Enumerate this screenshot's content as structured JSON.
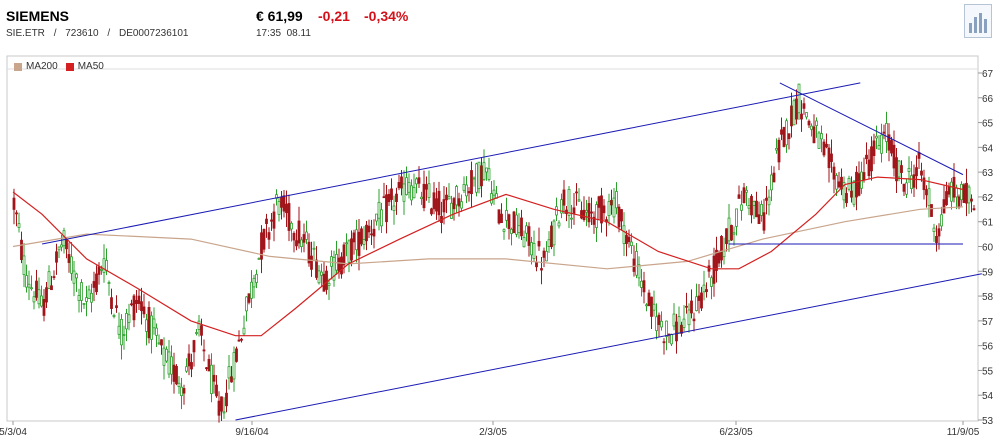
{
  "header": {
    "name": "SIEMENS",
    "price": "€ 61,99",
    "change": "-0,21",
    "change_pct": "-0,34%",
    "symbol": "SIE.ETR",
    "sep": "/",
    "wkn": "723610",
    "isin": "DE0007236101",
    "time": "17:35",
    "date": "08.11"
  },
  "colors": {
    "up": "#2ca02c",
    "down": "#a0151a",
    "ma200": "#c9a58c",
    "ma50": "#d42020",
    "trend": "#1a1ab4"
  },
  "chart_data": {
    "type": "candlestick",
    "legend": [
      "MA200",
      "MA50"
    ],
    "ylim": [
      53,
      67
    ],
    "yticks": [
      53,
      54,
      55,
      56,
      57,
      58,
      59,
      60,
      61,
      62,
      63,
      64,
      65,
      66,
      67
    ],
    "xticks": [
      "5/3/04",
      "9/16/04",
      "2/3/05",
      "6/23/05",
      "11/9/05"
    ],
    "x_range": [
      "2004-05-03",
      "2005-11-09"
    ],
    "series": [
      {
        "name": "MA200",
        "points": [
          [
            "2004-05-03",
            60.0
          ],
          [
            "2004-06-15",
            60.5
          ],
          [
            "2004-08-15",
            60.3
          ],
          [
            "2004-09-30",
            59.6
          ],
          [
            "2004-11-15",
            59.3
          ],
          [
            "2005-01-01",
            59.5
          ],
          [
            "2005-02-15",
            59.5
          ],
          [
            "2005-04-15",
            59.1
          ],
          [
            "2005-06-01",
            59.4
          ],
          [
            "2005-07-15",
            60.3
          ],
          [
            "2005-09-01",
            61.0
          ],
          [
            "2005-10-15",
            61.5
          ],
          [
            "2005-11-09",
            61.6
          ]
        ]
      },
      {
        "name": "MA50",
        "points": [
          [
            "2004-05-03",
            62.2
          ],
          [
            "2004-05-20",
            61.3
          ],
          [
            "2004-06-15",
            59.5
          ],
          [
            "2004-07-15",
            58.3
          ],
          [
            "2004-08-15",
            57.0
          ],
          [
            "2004-09-10",
            56.4
          ],
          [
            "2004-09-25",
            56.4
          ],
          [
            "2004-10-15",
            57.5
          ],
          [
            "2004-11-15",
            59.3
          ],
          [
            "2004-12-15",
            60.3
          ],
          [
            "2005-01-15",
            61.3
          ],
          [
            "2005-02-15",
            62.1
          ],
          [
            "2005-03-15",
            61.5
          ],
          [
            "2005-04-15",
            61.0
          ],
          [
            "2005-05-15",
            59.8
          ],
          [
            "2005-06-15",
            59.1
          ],
          [
            "2005-07-01",
            59.1
          ],
          [
            "2005-07-20",
            59.8
          ],
          [
            "2005-08-15",
            61.3
          ],
          [
            "2005-09-01",
            62.5
          ],
          [
            "2005-09-20",
            62.8
          ],
          [
            "2005-10-15",
            62.7
          ],
          [
            "2005-11-09",
            62.3
          ]
        ]
      }
    ],
    "trendlines": [
      {
        "from": [
          "2004-05-20",
          60.1
        ],
        "to": [
          "2005-09-10",
          66.6
        ]
      },
      {
        "from": [
          "2004-09-10",
          53.0
        ],
        "to": [
          "2005-11-20",
          58.9
        ]
      },
      {
        "from": [
          "2005-07-25",
          66.6
        ],
        "to": [
          "2005-11-09",
          62.9
        ]
      },
      {
        "from": [
          "2005-06-25",
          60.1
        ],
        "to": [
          "2005-11-09",
          60.1
        ]
      }
    ],
    "price_path": [
      [
        "2004-05-03",
        62.0
      ],
      [
        "2004-05-10",
        59.0
      ],
      [
        "2004-05-20",
        57.5
      ],
      [
        "2004-06-01",
        60.2
      ],
      [
        "2004-06-15",
        57.5
      ],
      [
        "2004-06-25",
        59.5
      ],
      [
        "2004-07-05",
        56.5
      ],
      [
        "2004-07-15",
        58.0
      ],
      [
        "2004-07-30",
        55.5
      ],
      [
        "2004-08-10",
        54.5
      ],
      [
        "2004-08-20",
        56.5
      ],
      [
        "2004-09-01",
        53.2
      ],
      [
        "2004-09-10",
        55.5
      ],
      [
        "2004-09-25",
        60.0
      ],
      [
        "2004-10-05",
        61.8
      ],
      [
        "2004-10-20",
        60.2
      ],
      [
        "2004-11-01",
        58.8
      ],
      [
        "2004-11-15",
        59.8
      ],
      [
        "2004-12-01",
        61.0
      ],
      [
        "2004-12-20",
        62.5
      ],
      [
        "2005-01-10",
        61.5
      ],
      [
        "2005-01-25",
        62.5
      ],
      [
        "2005-02-03",
        63.2
      ],
      [
        "2005-02-10",
        61.5
      ],
      [
        "2005-02-25",
        60.5
      ],
      [
        "2005-03-10",
        59.3
      ],
      [
        "2005-03-20",
        62.0
      ],
      [
        "2005-04-05",
        61.2
      ],
      [
        "2005-04-20",
        61.8
      ],
      [
        "2005-05-01",
        59.5
      ],
      [
        "2005-05-10",
        57.5
      ],
      [
        "2005-05-20",
        56.5
      ],
      [
        "2005-06-01",
        57.0
      ],
      [
        "2005-06-15",
        58.8
      ],
      [
        "2005-06-25",
        60.5
      ],
      [
        "2005-07-05",
        62.2
      ],
      [
        "2005-07-15",
        61.0
      ],
      [
        "2005-07-25",
        64.0
      ],
      [
        "2005-08-05",
        66.0
      ],
      [
        "2005-08-15",
        64.5
      ],
      [
        "2005-08-25",
        63.0
      ],
      [
        "2005-09-05",
        62.0
      ],
      [
        "2005-09-15",
        63.5
      ],
      [
        "2005-09-25",
        64.5
      ],
      [
        "2005-10-05",
        62.5
      ],
      [
        "2005-10-15",
        63.2
      ],
      [
        "2005-10-25",
        60.5
      ],
      [
        "2005-11-01",
        62.3
      ],
      [
        "2005-11-09",
        62.0
      ]
    ]
  }
}
